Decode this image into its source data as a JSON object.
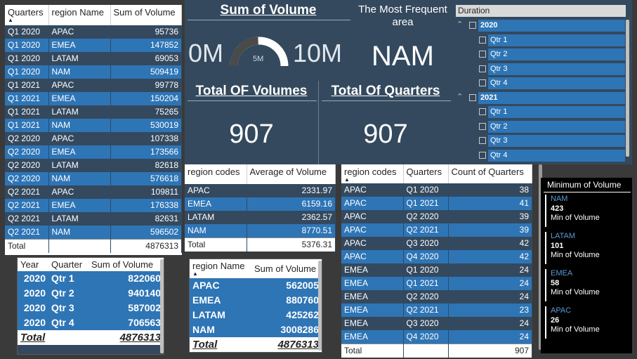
{
  "quarter_table": {
    "headers": [
      "Quarters",
      "region Name",
      "Sum of Volume"
    ],
    "rows": [
      [
        "Q1 2020",
        "APAC",
        "95736"
      ],
      [
        "Q1 2020",
        "EMEA",
        "147852"
      ],
      [
        "Q1 2020",
        "LATAM",
        "69053"
      ],
      [
        "Q1 2020",
        "NAM",
        "509419"
      ],
      [
        "Q1 2021",
        "APAC",
        "99778"
      ],
      [
        "Q1 2021",
        "EMEA",
        "150204"
      ],
      [
        "Q1 2021",
        "LATAM",
        "75265"
      ],
      [
        "Q1 2021",
        "NAM",
        "530019"
      ],
      [
        "Q2 2020",
        "APAC",
        "107338"
      ],
      [
        "Q2 2020",
        "EMEA",
        "173566"
      ],
      [
        "Q2 2020",
        "LATAM",
        "82618"
      ],
      [
        "Q2 2020",
        "NAM",
        "576618"
      ],
      [
        "Q2 2021",
        "APAC",
        "109811"
      ],
      [
        "Q2 2021",
        "EMEA",
        "176338"
      ],
      [
        "Q2 2021",
        "LATAM",
        "82631"
      ],
      [
        "Q2 2021",
        "NAM",
        "596502"
      ]
    ],
    "total_label": "Total",
    "total_value": "4876313"
  },
  "sum_card": {
    "title": "Sum of Volume",
    "min": "0M",
    "max": "10M",
    "mid": "5M",
    "gauge_fraction": 0.4876
  },
  "frequent_card": {
    "title": "The Most Frequent area",
    "value": "NAM"
  },
  "total_volumes_card": {
    "title": "Total OF Volumes",
    "value": "907"
  },
  "total_quarters_card": {
    "title": "Total Of Quarters",
    "value": "907"
  },
  "duration_slicer": {
    "title": "Duration",
    "years": [
      {
        "label": "2020",
        "quarters": [
          "Qtr 1",
          "Qtr 2",
          "Qtr 3",
          "Qtr 4"
        ]
      },
      {
        "label": "2021",
        "quarters": [
          "Qtr 1",
          "Qtr 2",
          "Qtr 3",
          "Qtr 4"
        ]
      }
    ]
  },
  "region_avg_table": {
    "headers": [
      "region codes",
      "Average of Volume"
    ],
    "rows": [
      [
        "APAC",
        "2331.97"
      ],
      [
        "EMEA",
        "6159.16"
      ],
      [
        "LATAM",
        "2362.57"
      ],
      [
        "NAM",
        "8770.51"
      ]
    ],
    "total_label": "Total",
    "total_value": "5376.31"
  },
  "count_table": {
    "headers": [
      "region codes",
      "Quarters",
      "Count of Quarters"
    ],
    "rows": [
      [
        "APAC",
        "Q1 2020",
        "38"
      ],
      [
        "APAC",
        "Q1 2021",
        "41"
      ],
      [
        "APAC",
        "Q2 2020",
        "39"
      ],
      [
        "APAC",
        "Q2 2021",
        "39"
      ],
      [
        "APAC",
        "Q3 2020",
        "42"
      ],
      [
        "APAC",
        "Q4 2020",
        "42"
      ],
      [
        "EMEA",
        "Q1 2020",
        "24"
      ],
      [
        "EMEA",
        "Q1 2021",
        "24"
      ],
      [
        "EMEA",
        "Q2 2020",
        "24"
      ],
      [
        "EMEA",
        "Q2 2021",
        "23"
      ],
      [
        "EMEA",
        "Q3 2020",
        "24"
      ],
      [
        "EMEA",
        "Q4 2020",
        "24"
      ]
    ],
    "total_label": "Total",
    "total_value": "907"
  },
  "min_panel": {
    "title": "Minimum of Volume",
    "items": [
      {
        "region": "NAM",
        "value": "423",
        "label": "Min of Volume"
      },
      {
        "region": "LATAM",
        "value": "101",
        "label": "Min of Volume"
      },
      {
        "region": "EMEA",
        "value": "58",
        "label": "Min of Volume"
      },
      {
        "region": "APAC",
        "value": "26",
        "label": "Min of Volume"
      }
    ]
  },
  "year_matrix": {
    "headers": [
      "Year",
      "Quarter",
      "Sum of Volume"
    ],
    "rows": [
      [
        "2020",
        "Qtr 1",
        "822060"
      ],
      [
        "2020",
        "Qtr 2",
        "940140"
      ],
      [
        "2020",
        "Qtr 3",
        "587002"
      ],
      [
        "2020",
        "Qtr 4",
        "706563"
      ]
    ],
    "total_label": "Total",
    "total_value": "4876313"
  },
  "region_matrix": {
    "headers": [
      "region Name",
      "Sum of Volume"
    ],
    "rows": [
      [
        "APAC",
        "562005"
      ],
      [
        "EMEA",
        "880760"
      ],
      [
        "LATAM",
        "425262"
      ],
      [
        "NAM",
        "3008286"
      ]
    ],
    "total_label": "Total",
    "total_value": "4876313"
  },
  "colors": {
    "background": "#3a3a3a",
    "panel": "#34495e",
    "row_blue": "#2e75b6",
    "row_dark": "#34495e",
    "gauge_fill": "#4a4a4a",
    "min_region": "#5b9bd5"
  }
}
